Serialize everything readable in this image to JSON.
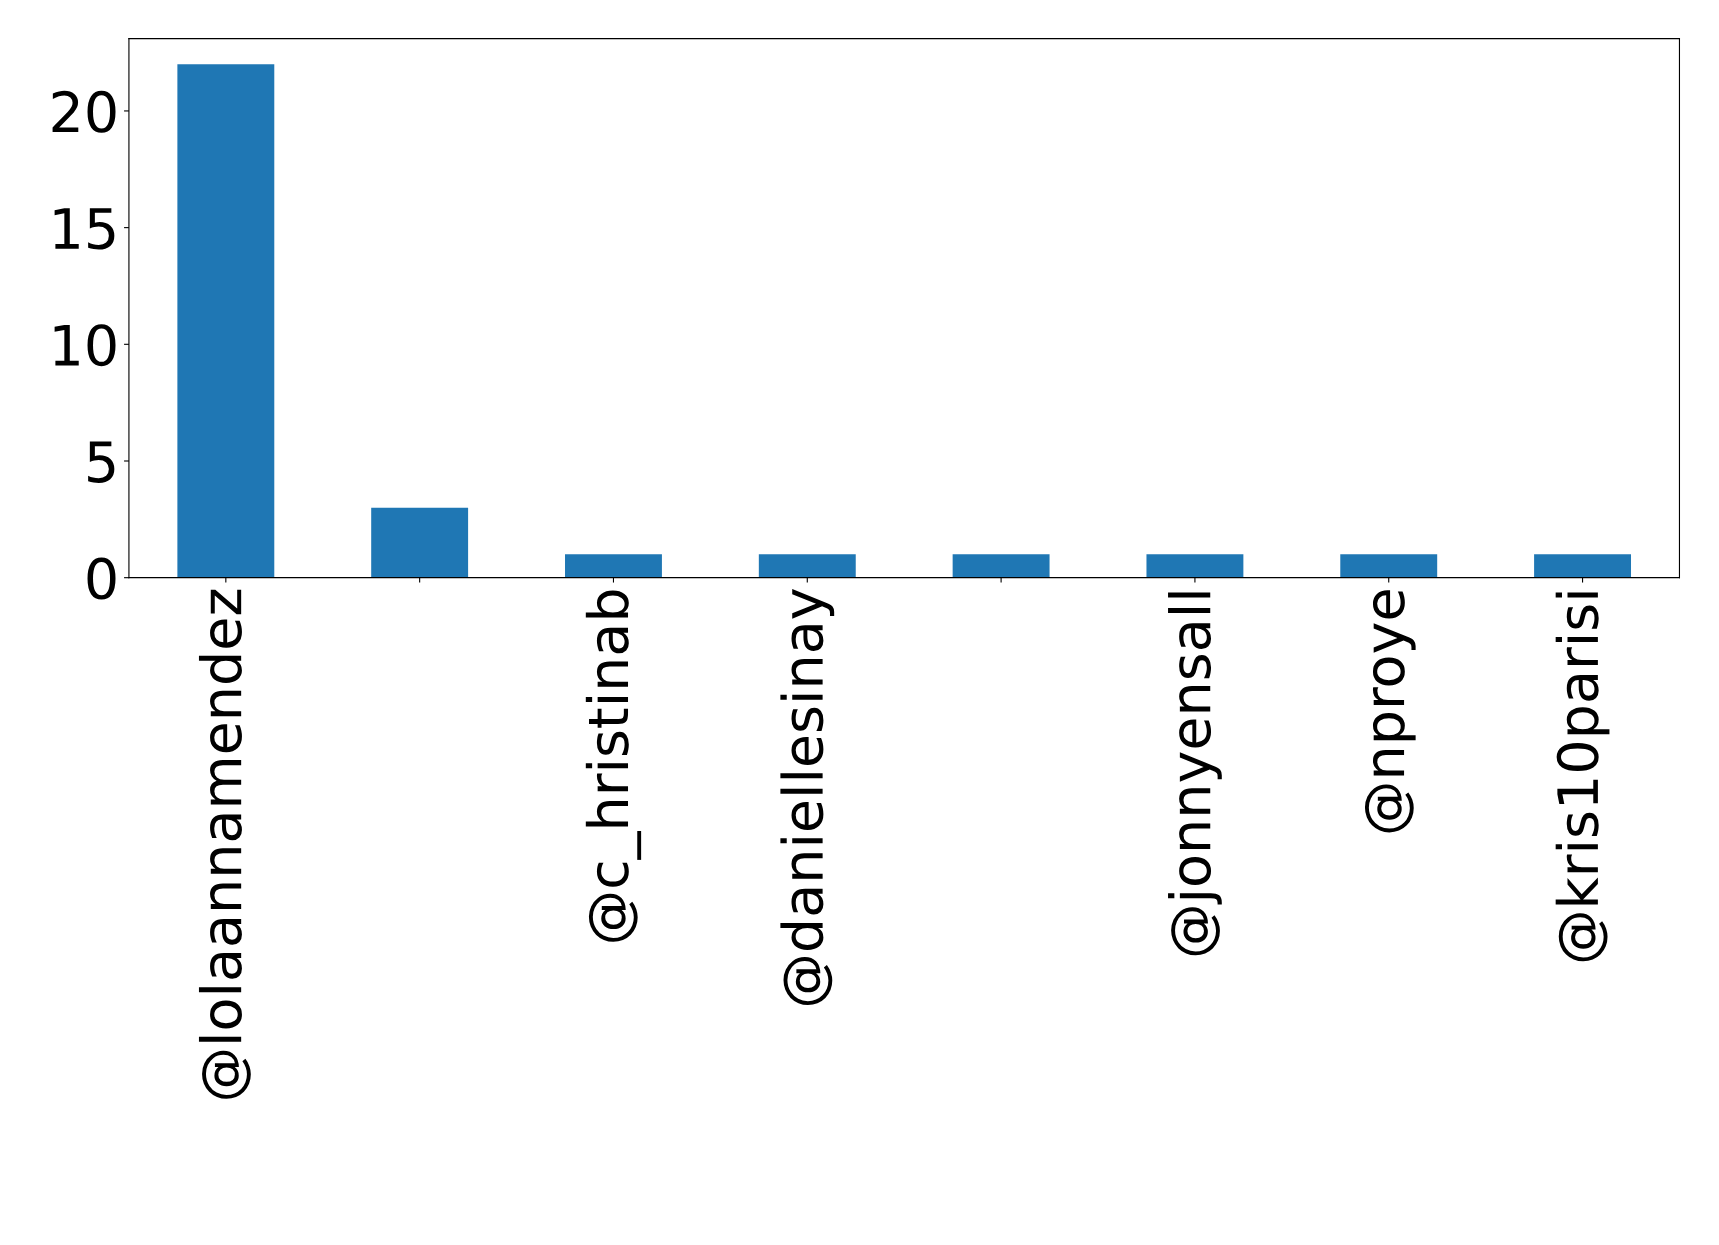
{
  "chart_data": {
    "type": "bar",
    "categories": [
      "@lolaannamendez",
      null,
      "@c_hristinab",
      "@daniellesinay",
      null,
      "@jonnyensall",
      "@nproye",
      "@kris10parisi"
    ],
    "values": [
      22,
      3,
      1,
      1,
      1,
      1,
      1,
      1
    ],
    "color": "#1f77b4",
    "ylim": [
      0,
      23.1
    ],
    "yticks": [
      0,
      5,
      10,
      15,
      20
    ],
    "grid": false,
    "legend": false
  }
}
